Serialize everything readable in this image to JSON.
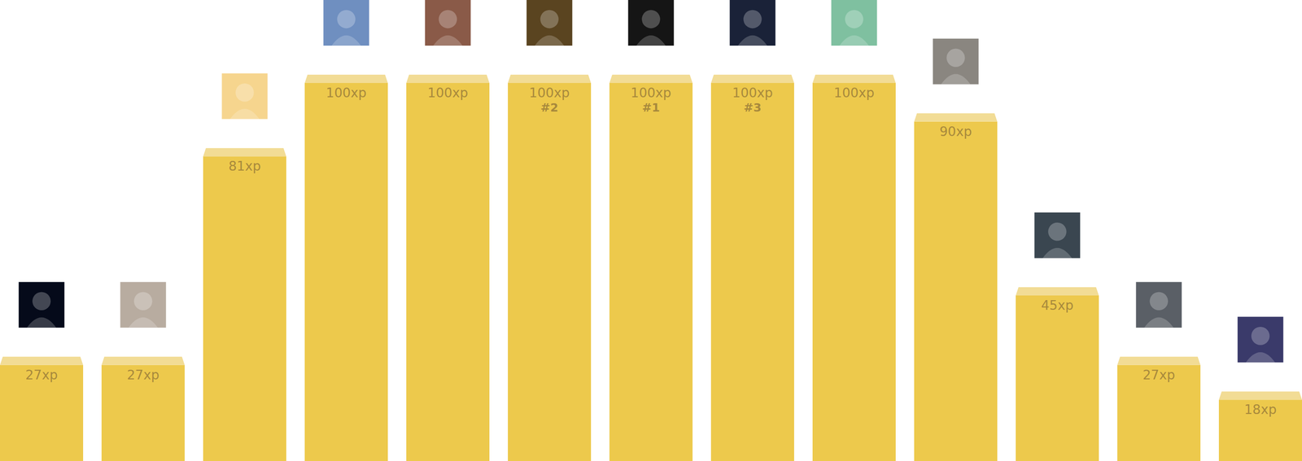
{
  "chart_data": {
    "type": "bar",
    "categories": [
      null,
      null,
      null,
      null,
      null,
      null,
      null,
      null,
      null,
      null,
      null,
      null,
      null
    ],
    "values": [
      27,
      27,
      81,
      100,
      100,
      100,
      100,
      100,
      100,
      90,
      45,
      27,
      18
    ],
    "value_labels": [
      "27xp",
      "27xp",
      "81xp",
      "100xp",
      "100xp",
      "100xp",
      "100xp",
      "100xp",
      "100xp",
      "90xp",
      "45xp",
      "27xp",
      "18xp"
    ],
    "rank_labels": [
      null,
      null,
      null,
      null,
      null,
      "#2",
      "#1",
      "#3",
      null,
      null,
      null,
      null,
      null
    ],
    "color": "#edc94c",
    "ylim": [
      0,
      100
    ],
    "data_labels": true,
    "tick_labels": false
  }
}
